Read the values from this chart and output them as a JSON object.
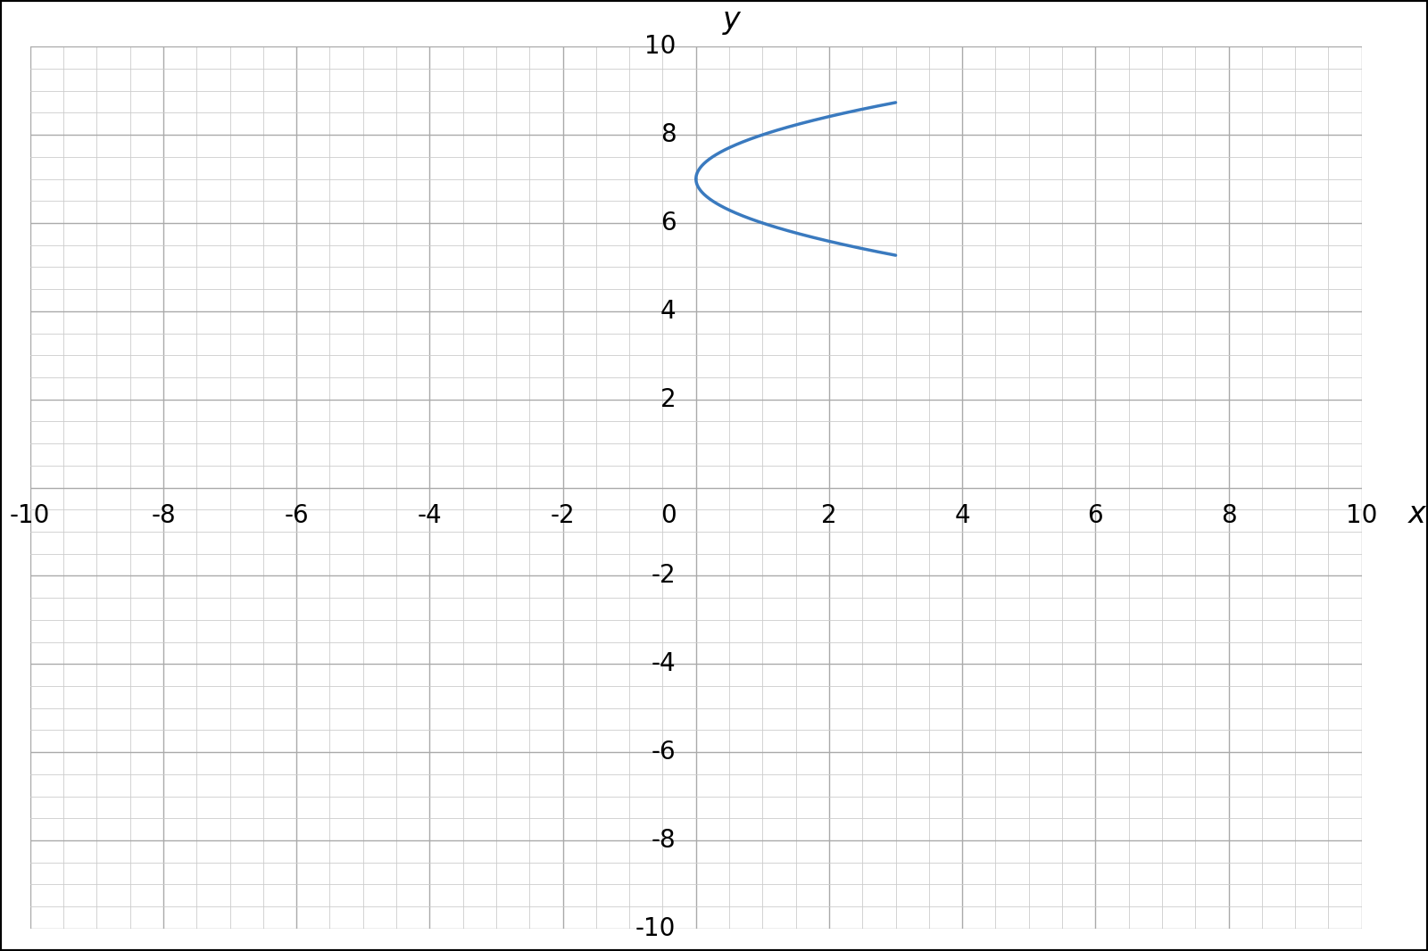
{
  "xlim": [
    -10,
    10
  ],
  "ylim": [
    -10,
    10
  ],
  "major_ticks": [
    -10,
    -8,
    -6,
    -4,
    -2,
    0,
    2,
    4,
    6,
    8,
    10
  ],
  "minor_tick_step": 0.5,
  "grid_minor_color": "#cccccc",
  "grid_major_color": "#aaaaaa",
  "curve_color": "#3a7abf",
  "curve_linewidth": 2.5,
  "t_start": 0,
  "t_end": 3,
  "vertex_y": 7,
  "xlabel": "x",
  "ylabel": "y",
  "axis_label_fontsize": 24,
  "tick_fontsize": 20,
  "background_color": "#ffffff",
  "border_color": "#000000",
  "axis_lw": 2.0,
  "arrow_mutation_scale": 18
}
